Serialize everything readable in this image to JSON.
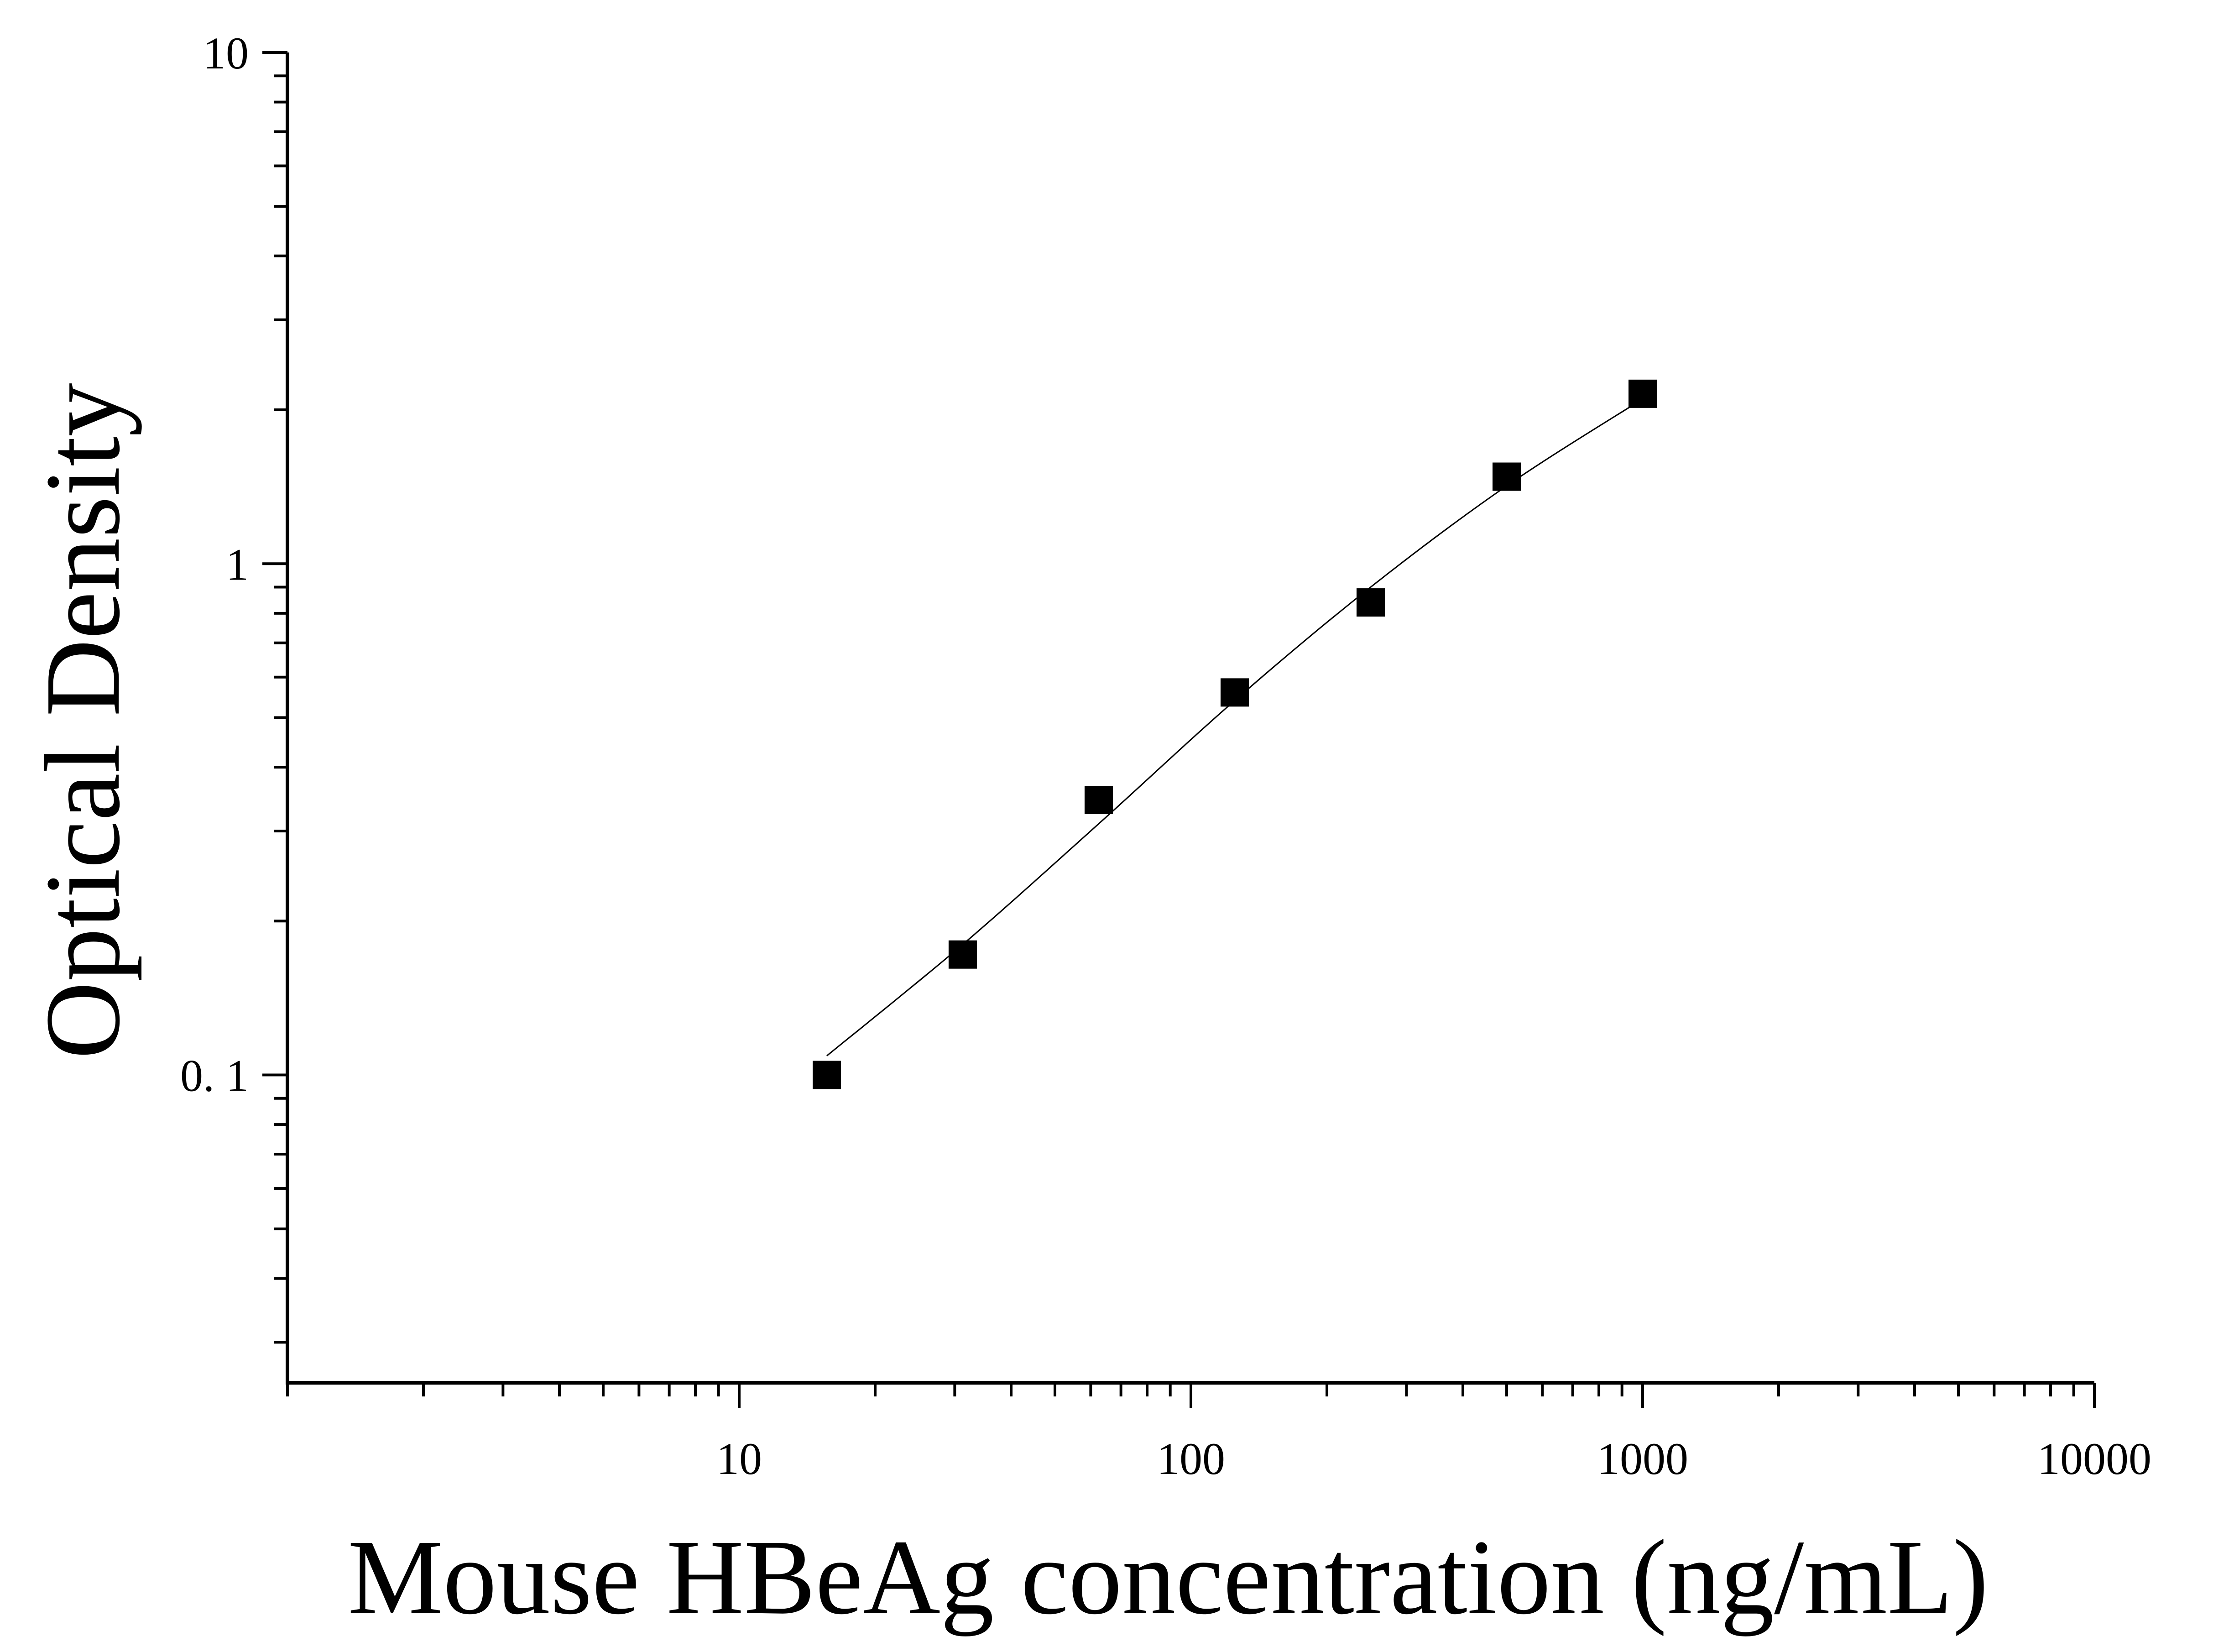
{
  "chart_data": {
    "type": "scatter",
    "title": "",
    "xlabel": "Mouse HBeAg concentration (ng/mL)",
    "ylabel": "Optical Density",
    "xscale": "log",
    "yscale": "log",
    "xlim": [
      1,
      10000
    ],
    "ylim": [
      0.025,
      10
    ],
    "x_ticks": [
      10,
      100,
      1000,
      10000
    ],
    "x_tick_labels": [
      "10",
      "100",
      "1000",
      "10000"
    ],
    "y_ticks": [
      0.1,
      1,
      10
    ],
    "y_tick_labels": [
      "0. 1",
      "1",
      "10"
    ],
    "grid": false,
    "legend": "none",
    "marker": "square",
    "marker_color": "#000000",
    "series": [
      {
        "x": [
          15.63,
          31.25,
          62.5,
          125,
          250,
          500,
          1000
        ],
        "y": [
          0.1,
          0.172,
          0.345,
          0.56,
          0.84,
          1.48,
          2.15
        ]
      }
    ],
    "fit_curve": {
      "x": [
        15.63,
        31.25,
        62.5,
        125,
        250,
        500,
        1000
      ],
      "y": [
        0.109,
        0.18,
        0.31,
        0.54,
        0.9,
        1.42,
        2.1
      ]
    }
  }
}
